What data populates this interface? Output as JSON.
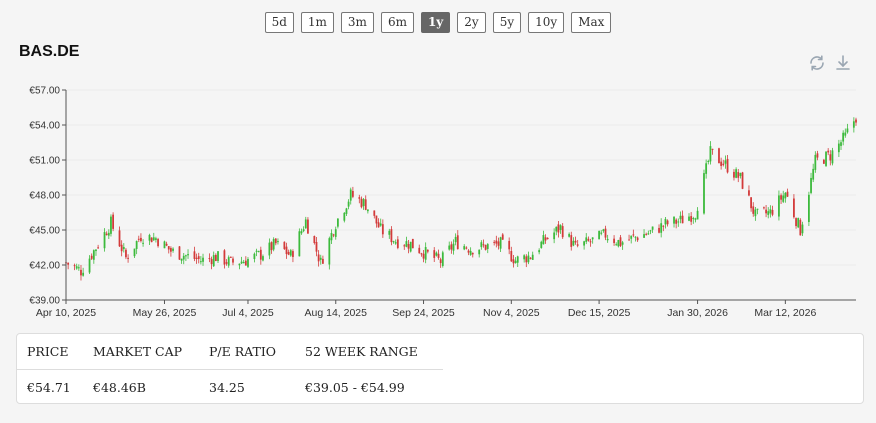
{
  "ranges": [
    "5d",
    "1m",
    "3m",
    "6m",
    "1y",
    "2y",
    "5y",
    "10y",
    "Max"
  ],
  "active_range": "1y",
  "ticker": "BAS.DE",
  "toolbar": {
    "refresh_icon": "refresh-icon",
    "download_icon": "download-icon"
  },
  "colors": {
    "up": "#3cba3c",
    "down": "#d33a3a",
    "axis": "#555555",
    "grid": "#ececec",
    "active_button": "#666666"
  },
  "stats": {
    "headers": [
      "PRICE",
      "MARKET CAP",
      "P/E RATIO",
      "52 WEEK RANGE"
    ],
    "values": [
      "€54.71",
      "€48.46B",
      "34.25",
      "€39.05 - €54.99"
    ]
  },
  "chart_data": {
    "type": "candlestick",
    "y_tick_labels": [
      "€57.00",
      "€54.00",
      "€51.00",
      "€48.00",
      "€45.00",
      "€42.00",
      "€39.00"
    ],
    "x_tick_labels": [
      "Apr 10, 2025",
      "May 26, 2025",
      "Jul 4, 2025",
      "Aug 14, 2025",
      "Sep 24, 2025",
      "Nov 4, 2025",
      "Dec 15, 2025",
      "Jan 30, 2026",
      "Mar 12, 2026"
    ],
    "x_ticks": [
      "2025-04-10",
      "2025-05-26",
      "2025-07-04",
      "2025-08-14",
      "2025-09-24",
      "2025-11-04",
      "2025-12-15",
      "2026-01-30",
      "2026-03-12"
    ],
    "ylim": [
      39,
      57
    ],
    "xlim": [
      "2025-04-10",
      "2026-04-14"
    ],
    "grid": "horizontal",
    "closes": [
      [
        "2025-04-10",
        42.2
      ],
      [
        "2025-04-17",
        41.5
      ],
      [
        "2025-04-24",
        43.5
      ],
      [
        "2025-05-01",
        45.6
      ],
      [
        "2025-05-08",
        42.6
      ],
      [
        "2025-05-15",
        44.5
      ],
      [
        "2025-05-22",
        44.3
      ],
      [
        "2025-05-29",
        43.2
      ],
      [
        "2025-06-05",
        42.8
      ],
      [
        "2025-06-12",
        42.4
      ],
      [
        "2025-06-19",
        42.7
      ],
      [
        "2025-06-26",
        42.2
      ],
      [
        "2025-07-03",
        42.4
      ],
      [
        "2025-07-10",
        42.9
      ],
      [
        "2025-07-17",
        43.8
      ],
      [
        "2025-07-24",
        42.8
      ],
      [
        "2025-07-31",
        45.8
      ],
      [
        "2025-08-07",
        42.2
      ],
      [
        "2025-08-14",
        45.6
      ],
      [
        "2025-08-21",
        48.0
      ],
      [
        "2025-08-28",
        47.2
      ],
      [
        "2025-09-04",
        45.0
      ],
      [
        "2025-09-11",
        44.1
      ],
      [
        "2025-09-18",
        43.8
      ],
      [
        "2025-09-25",
        43.0
      ],
      [
        "2025-10-02",
        42.3
      ],
      [
        "2025-10-09",
        44.0
      ],
      [
        "2025-10-16",
        43.4
      ],
      [
        "2025-10-23",
        43.6
      ],
      [
        "2025-10-30",
        43.8
      ],
      [
        "2025-11-06",
        42.4
      ],
      [
        "2025-11-13",
        42.8
      ],
      [
        "2025-11-20",
        44.2
      ],
      [
        "2025-11-27",
        45.2
      ],
      [
        "2025-12-04",
        43.5
      ],
      [
        "2025-12-11",
        44.0
      ],
      [
        "2025-12-18",
        44.6
      ],
      [
        "2025-12-25",
        43.9
      ],
      [
        "2026-01-01",
        44.4
      ],
      [
        "2026-01-08",
        44.8
      ],
      [
        "2026-01-15",
        45.5
      ],
      [
        "2026-01-22",
        45.8
      ],
      [
        "2026-01-29",
        46.5
      ],
      [
        "2026-02-05",
        51.6
      ],
      [
        "2026-02-12",
        50.6
      ],
      [
        "2026-02-19",
        49.4
      ],
      [
        "2026-02-26",
        46.2
      ],
      [
        "2026-03-05",
        46.5
      ],
      [
        "2026-03-12",
        48.2
      ],
      [
        "2026-03-19",
        45.0
      ],
      [
        "2026-03-26",
        50.9
      ],
      [
        "2026-04-02",
        51.4
      ],
      [
        "2026-04-09",
        53.0
      ],
      [
        "2026-04-14",
        54.71
      ]
    ]
  }
}
